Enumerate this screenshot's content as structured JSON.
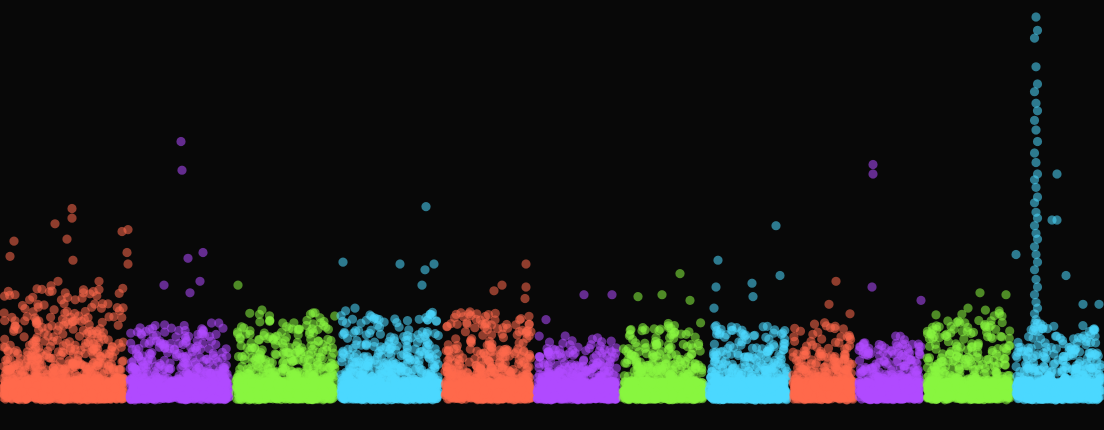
{
  "background": "#080808",
  "chart_data": {
    "type": "scatter",
    "style": "manhattan",
    "title": "",
    "xlabel": "",
    "ylabel": "",
    "axes_visible": false,
    "grid": false,
    "legend": "none",
    "point_opacity": 0.55,
    "ylim": [
      0,
      20
    ],
    "xlim": [
      0,
      1104
    ],
    "palette": [
      "#ff6a4d",
      "#b04bff",
      "#88f53f",
      "#4dd9ff"
    ],
    "groups": [
      {
        "id": 1,
        "range": [
          0,
          127
        ],
        "color": "#ff6a4d",
        "base_density": 7.5,
        "bulk_top": 4.5
      },
      {
        "id": 2,
        "range": [
          127,
          233
        ],
        "color": "#b04bff",
        "base_density": 3.0,
        "bulk_top": 3.0
      },
      {
        "id": 3,
        "range": [
          233,
          338
        ],
        "color": "#88f53f",
        "base_density": 4.0,
        "bulk_top": 3.5
      },
      {
        "id": 4,
        "range": [
          338,
          442
        ],
        "color": "#4dd9ff",
        "base_density": 4.5,
        "bulk_top": 3.5
      },
      {
        "id": 5,
        "range": [
          442,
          534
        ],
        "color": "#ff6a4d",
        "base_density": 3.5,
        "bulk_top": 3.5
      },
      {
        "id": 6,
        "range": [
          534,
          620
        ],
        "color": "#b04bff",
        "base_density": 3.0,
        "bulk_top": 2.5
      },
      {
        "id": 7,
        "range": [
          620,
          706
        ],
        "color": "#88f53f",
        "base_density": 3.0,
        "bulk_top": 3.0
      },
      {
        "id": 8,
        "range": [
          706,
          790
        ],
        "color": "#4dd9ff",
        "base_density": 3.5,
        "bulk_top": 3.0
      },
      {
        "id": 9,
        "range": [
          790,
          856
        ],
        "color": "#ff6a4d",
        "base_density": 4.0,
        "bulk_top": 3.0
      },
      {
        "id": 10,
        "range": [
          856,
          924
        ],
        "color": "#b04bff",
        "base_density": 3.0,
        "bulk_top": 2.5
      },
      {
        "id": 11,
        "range": [
          924,
          1013
        ],
        "color": "#88f53f",
        "base_density": 4.0,
        "bulk_top": 3.5
      },
      {
        "id": 12,
        "range": [
          1013,
          1104
        ],
        "color": "#4dd9ff",
        "base_density": 4.0,
        "bulk_top": 3.0
      }
    ],
    "highlights": [
      {
        "group": 1,
        "x": 14,
        "y": 8.3
      },
      {
        "group": 1,
        "x": 10,
        "y": 7.5
      },
      {
        "group": 1,
        "x": 72,
        "y": 10.0
      },
      {
        "group": 1,
        "x": 72,
        "y": 9.5
      },
      {
        "group": 1,
        "x": 55,
        "y": 9.2
      },
      {
        "group": 1,
        "x": 122,
        "y": 8.8
      },
      {
        "group": 1,
        "x": 128,
        "y": 8.9
      },
      {
        "group": 1,
        "x": 127,
        "y": 7.7
      },
      {
        "group": 1,
        "x": 67,
        "y": 8.4
      },
      {
        "group": 1,
        "x": 128,
        "y": 7.1
      },
      {
        "group": 1,
        "x": 73,
        "y": 7.3
      },
      {
        "group": 1,
        "x": 58,
        "y": 6.2
      },
      {
        "group": 1,
        "x": 37,
        "y": 5.8
      },
      {
        "group": 1,
        "x": 99,
        "y": 6.2
      },
      {
        "group": 1,
        "x": 15,
        "y": 5.5
      },
      {
        "group": 2,
        "x": 181,
        "y": 13.5
      },
      {
        "group": 2,
        "x": 182,
        "y": 12.0
      },
      {
        "group": 2,
        "x": 203,
        "y": 7.7
      },
      {
        "group": 2,
        "x": 188,
        "y": 7.4
      },
      {
        "group": 2,
        "x": 164,
        "y": 6.0
      },
      {
        "group": 2,
        "x": 200,
        "y": 6.2
      },
      {
        "group": 2,
        "x": 190,
        "y": 5.6
      },
      {
        "group": 3,
        "x": 238,
        "y": 6.0
      },
      {
        "group": 3,
        "x": 262,
        "y": 4.7
      },
      {
        "group": 3,
        "x": 320,
        "y": 4.3
      },
      {
        "group": 4,
        "x": 426,
        "y": 10.1
      },
      {
        "group": 4,
        "x": 343,
        "y": 7.2
      },
      {
        "group": 4,
        "x": 400,
        "y": 7.1
      },
      {
        "group": 4,
        "x": 434,
        "y": 7.1
      },
      {
        "group": 4,
        "x": 425,
        "y": 6.8
      },
      {
        "group": 4,
        "x": 422,
        "y": 6.0
      },
      {
        "group": 4,
        "x": 355,
        "y": 4.8
      },
      {
        "group": 5,
        "x": 526,
        "y": 7.1
      },
      {
        "group": 5,
        "x": 502,
        "y": 6.0
      },
      {
        "group": 5,
        "x": 526,
        "y": 5.9
      },
      {
        "group": 5,
        "x": 494,
        "y": 5.7
      },
      {
        "group": 5,
        "x": 525,
        "y": 5.3
      },
      {
        "group": 5,
        "x": 470,
        "y": 4.6
      },
      {
        "group": 6,
        "x": 584,
        "y": 5.5
      },
      {
        "group": 6,
        "x": 612,
        "y": 5.5
      },
      {
        "group": 6,
        "x": 546,
        "y": 4.2
      },
      {
        "group": 7,
        "x": 680,
        "y": 6.6
      },
      {
        "group": 7,
        "x": 638,
        "y": 5.4
      },
      {
        "group": 7,
        "x": 662,
        "y": 5.5
      },
      {
        "group": 7,
        "x": 690,
        "y": 5.2
      },
      {
        "group": 8,
        "x": 776,
        "y": 9.1
      },
      {
        "group": 8,
        "x": 718,
        "y": 7.3
      },
      {
        "group": 8,
        "x": 780,
        "y": 6.5
      },
      {
        "group": 8,
        "x": 752,
        "y": 6.1
      },
      {
        "group": 8,
        "x": 716,
        "y": 5.9
      },
      {
        "group": 8,
        "x": 753,
        "y": 5.4
      },
      {
        "group": 8,
        "x": 714,
        "y": 4.8
      },
      {
        "group": 9,
        "x": 836,
        "y": 6.2
      },
      {
        "group": 9,
        "x": 829,
        "y": 5.0
      },
      {
        "group": 9,
        "x": 850,
        "y": 4.5
      },
      {
        "group": 10,
        "x": 873,
        "y": 12.3
      },
      {
        "group": 10,
        "x": 873,
        "y": 11.8
      },
      {
        "group": 10,
        "x": 872,
        "y": 5.9
      },
      {
        "group": 10,
        "x": 921,
        "y": 5.2
      },
      {
        "group": 11,
        "x": 980,
        "y": 5.6
      },
      {
        "group": 11,
        "x": 1006,
        "y": 5.5
      },
      {
        "group": 11,
        "x": 968,
        "y": 4.8
      },
      {
        "group": 12,
        "x": 1016,
        "y": 7.6
      },
      {
        "group": 12,
        "x": 1057,
        "y": 11.8
      },
      {
        "group": 12,
        "x": 1057,
        "y": 9.4
      },
      {
        "group": 12,
        "x": 1066,
        "y": 6.5
      },
      {
        "group": 12,
        "x": 1099,
        "y": 5.0
      },
      {
        "group": 12,
        "x": 1083,
        "y": 5.0
      },
      {
        "group": 12,
        "x": 1052,
        "y": 9.4
      }
    ],
    "peak": {
      "group": 12,
      "x": 1036,
      "values": [
        20.0,
        19.3,
        18.9,
        17.4,
        16.5,
        16.1,
        15.5,
        15.1,
        14.6,
        14.1,
        13.5,
        12.9,
        12.4,
        11.8,
        11.5,
        11.1,
        10.6,
        10.3,
        9.8,
        9.5,
        9.1,
        8.7,
        8.4,
        8.0,
        7.6,
        7.2,
        6.8,
        6.3,
        5.9,
        5.5,
        5.1,
        4.8,
        4.5,
        4.2,
        4.0,
        3.8,
        3.6
      ]
    }
  }
}
